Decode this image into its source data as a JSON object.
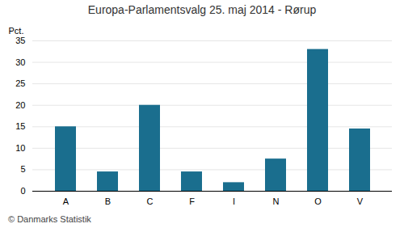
{
  "chart_data": {
    "type": "bar",
    "title": "Europa-Parlamentsvalg 25. maj 2014 - Rørup",
    "categories": [
      "A",
      "B",
      "C",
      "F",
      "I",
      "N",
      "O",
      "V"
    ],
    "values": [
      15.0,
      4.5,
      20.0,
      4.5,
      2.0,
      7.5,
      33.0,
      14.5
    ],
    "color": "#1a6e8e",
    "ylabel": "Pct.",
    "ylim": [
      0,
      35
    ],
    "yticks": [
      0,
      5,
      10,
      15,
      20,
      25,
      30,
      35
    ],
    "grid": true,
    "annotations": [
      "© Danmarks Statistik"
    ]
  }
}
